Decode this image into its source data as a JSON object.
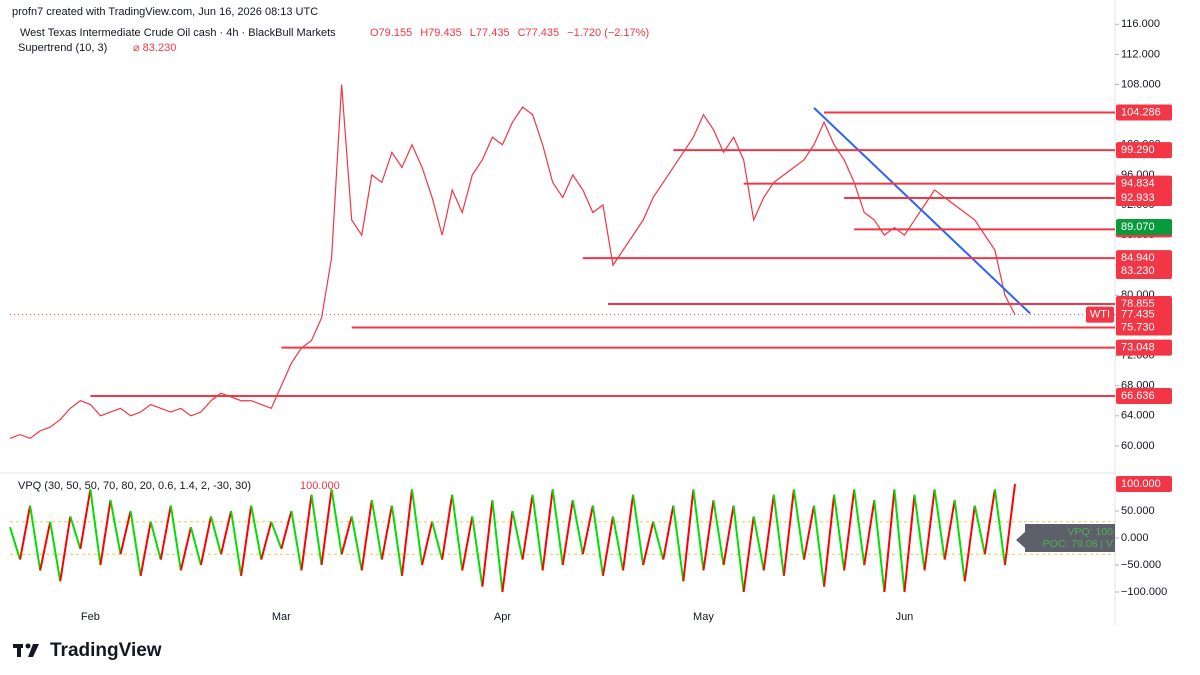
{
  "header": {
    "credit": "profn7 created with TradingView.com, Jun 16, 2026 08:13 UTC",
    "symbol": "West Texas Intermediate Crude Oil cash · 4h · BlackBull Markets",
    "ohlc": [
      "O79.155",
      "H79.435",
      "L77.435",
      "C77.435",
      "−1.720 (−2.17%)"
    ],
    "indicator": "Supertrend (10, 3)",
    "indicator_value": "⌀ 83.230"
  },
  "chart_data": [
    {
      "type": "line",
      "categories": [
        null,
        null,
        null,
        null,
        null,
        null,
        null,
        null,
        "Feb",
        null,
        null,
        null,
        null,
        null,
        null,
        null,
        null,
        null,
        null,
        null,
        null,
        null,
        null,
        null,
        null,
        null,
        null,
        "Mar",
        null,
        null,
        null,
        null,
        null,
        null,
        null,
        null,
        null,
        null,
        null,
        null,
        null,
        null,
        null,
        null,
        null,
        null,
        null,
        null,
        null,
        "Apr",
        null,
        null,
        null,
        null,
        null,
        null,
        null,
        null,
        null,
        null,
        null,
        null,
        null,
        null,
        null,
        null,
        null,
        null,
        null,
        "May",
        null,
        null,
        null,
        null,
        null,
        null,
        null,
        null,
        null,
        null,
        null,
        null,
        null,
        null,
        null,
        null,
        null,
        null,
        null,
        "Jun",
        null,
        null,
        null,
        null,
        null,
        null,
        null,
        null,
        null,
        null,
        null
      ],
      "series": [
        {
          "name": "WTI",
          "color": "#f23645",
          "values": [
            61,
            61.5,
            61,
            62,
            62.5,
            63.5,
            65,
            66,
            65.5,
            64,
            64.5,
            65,
            64,
            64.5,
            65.5,
            65,
            64.5,
            65,
            64,
            64.5,
            66,
            67,
            66.5,
            66,
            66,
            65.5,
            65,
            68,
            71,
            73,
            74,
            77,
            85,
            108,
            90,
            88,
            96,
            95,
            99,
            97,
            100,
            97,
            93,
            88,
            94,
            91,
            96,
            98,
            101,
            100,
            103,
            105,
            104,
            100,
            95,
            93,
            96,
            94,
            91,
            92,
            84,
            86,
            88,
            90,
            93,
            95,
            97,
            99,
            101,
            104,
            102,
            99,
            101,
            98,
            90,
            93,
            95,
            96,
            97,
            98,
            100,
            103,
            100,
            98,
            95,
            91,
            90,
            88,
            89,
            88,
            90,
            92,
            94,
            93,
            92,
            91,
            90,
            88,
            86,
            80,
            77.435
          ]
        }
      ],
      "last_value": 77.435,
      "ylim": [
        56.8,
        117.9
      ],
      "yticks": [
        {
          "value": 60,
          "label": "60.000"
        },
        {
          "value": 64,
          "label": "64.000"
        },
        {
          "value": 68,
          "label": "68.000"
        },
        {
          "value": 72,
          "label": "72.000"
        },
        {
          "value": 76,
          "label": "76.000"
        },
        {
          "value": 80,
          "label": "80.000"
        },
        {
          "value": 84,
          "label": "84.000"
        },
        {
          "value": 88,
          "label": "88.000"
        },
        {
          "value": 92,
          "label": "92.000"
        },
        {
          "value": 96,
          "label": "96.000"
        },
        {
          "value": 100,
          "label": "100.000"
        },
        {
          "value": 104,
          "label": "104.000"
        },
        {
          "value": 108,
          "label": "108.000"
        },
        {
          "value": 112,
          "label": "112.000"
        },
        {
          "value": 116,
          "label": "116.000"
        }
      ],
      "levels": [
        {
          "value": 104.286,
          "x_start": 81
        },
        {
          "value": 99.29,
          "label": "99.290",
          "x_start": 66
        },
        {
          "value": 94.834,
          "x_start": 73
        },
        {
          "value": 92.933,
          "x_start": 83
        },
        {
          "value": 88.756,
          "x_start": 84
        },
        {
          "value": 84.94,
          "label": "84.940",
          "x_start": 57
        },
        {
          "value": 78.855,
          "x_start": 59.5
        },
        {
          "value": 75.73,
          "label": "75.730",
          "x_start": 34
        },
        {
          "value": 73.048,
          "x_start": 27
        },
        {
          "value": 66.636,
          "x_start": 8
        }
      ],
      "level_color": "#f23645",
      "price_markers": [
        {
          "value": 89.07,
          "label": "89.070",
          "color": "#089b3c"
        },
        {
          "value": 83.23,
          "label": "83.230",
          "color": "#f23645"
        }
      ],
      "trendline": {
        "color": "#2962ff",
        "x": [
          80,
          101.5
        ],
        "y": [
          104.9,
          77.6
        ]
      }
    },
    {
      "type": "oscillator",
      "legend": "VPQ (30, 50, 50, 70, 80, 20, 0.6, 1.4, 2, -30, 30)",
      "series": [
        {
          "name": "VPQ",
          "color_pos": "#ff0000",
          "color_neg": "#00e000",
          "values": [
            20,
            -40,
            60,
            -60,
            30,
            -80,
            40,
            -20,
            90,
            -50,
            70,
            -30,
            50,
            -70,
            30,
            -40,
            60,
            -60,
            20,
            -50,
            40,
            -30,
            50,
            -70,
            60,
            -40,
            30,
            -20,
            50,
            -60,
            80,
            -50,
            90,
            -30,
            40,
            -60,
            70,
            -40,
            60,
            -70,
            90,
            -50,
            30,
            -40,
            80,
            -60,
            40,
            -90,
            70,
            -100,
            50,
            -40,
            80,
            -60,
            90,
            -50,
            70,
            -30,
            60,
            -70,
            40,
            -60,
            80,
            -50,
            30,
            -40,
            60,
            -80,
            90,
            -60,
            70,
            -50,
            60,
            -100,
            40,
            -60,
            80,
            -70,
            90,
            -40,
            60,
            -90,
            80,
            -60,
            90,
            -50,
            70,
            -100,
            90,
            -100,
            80,
            -60,
            90,
            -40,
            70,
            -80,
            60,
            -30,
            90,
            -50,
            100
          ]
        }
      ],
      "last_value": {
        "value": 100,
        "label": "100.000"
      },
      "thresholds": [
        30,
        -30
      ],
      "box": [
        "VPQ: 100",
        "POC: 79.08 | V"
      ],
      "ylim": [
        -114.8,
        118.5
      ],
      "yticks": [
        {
          "value": -100,
          "label": "−100.000"
        },
        {
          "value": -50,
          "label": "−50.000"
        },
        {
          "value": 0,
          "label": "0.000"
        },
        {
          "value": 50,
          "label": "50.000"
        }
      ]
    }
  ],
  "logo": "TradingView"
}
